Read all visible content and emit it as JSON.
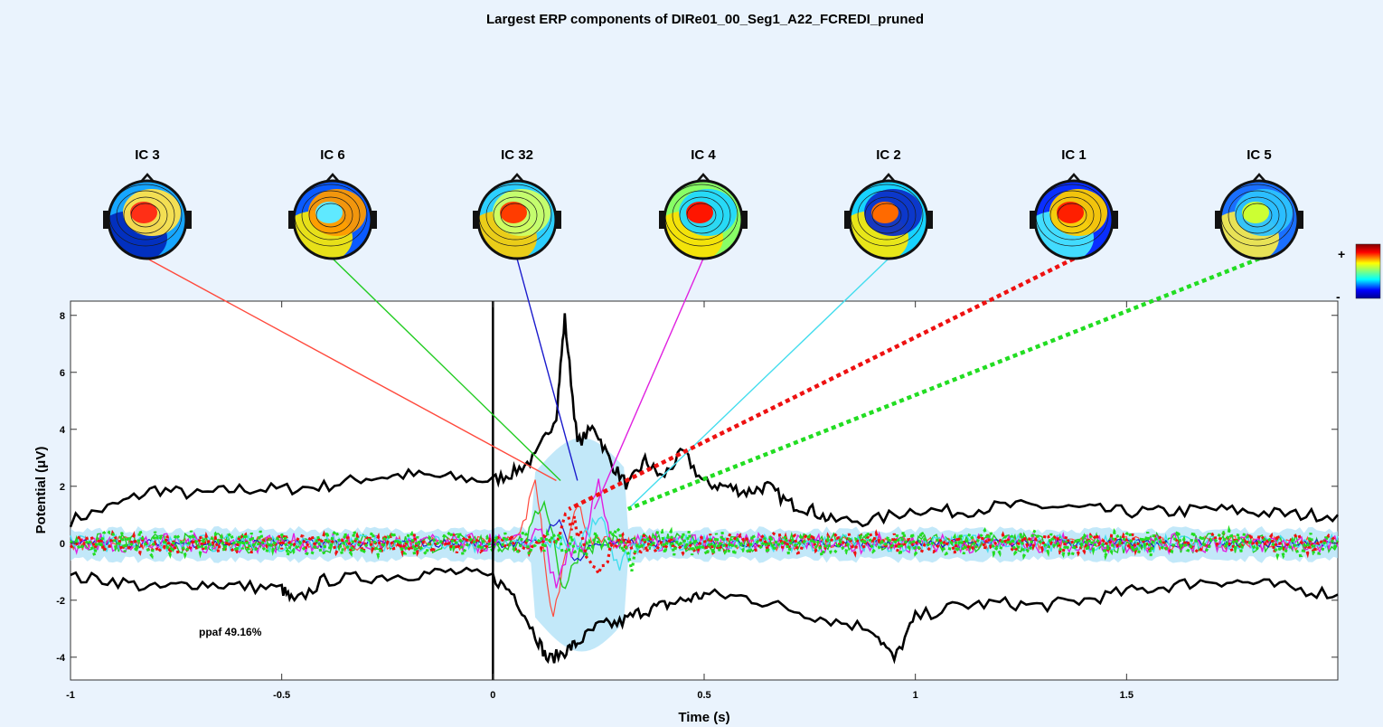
{
  "chart_data": {
    "type": "line",
    "title": "Largest ERP components of DIRe01_00_Seg1_A22_FCREDI_pruned",
    "xlabel": "Time (s)",
    "ylabel": "Potential (μV)",
    "xlim": [
      -1,
      2
    ],
    "ylim": [
      -4.8,
      8.5
    ],
    "x_ticks": [
      -1,
      -0.5,
      0,
      0.5,
      1,
      1.5
    ],
    "x_tick_labels": [
      "-1",
      "-0.5",
      "0",
      "0.5",
      "1",
      "1.5"
    ],
    "y_ticks": [
      -4,
      -2,
      0,
      2,
      4,
      6,
      8
    ],
    "y_tick_labels": [
      "-4",
      "-2",
      "0",
      "2",
      "4",
      "6",
      "8"
    ],
    "grid": false,
    "legend": "none",
    "stimulus_onset": 0,
    "annotation": "ppaf 49.16%",
    "colorbar": {
      "plus_label": "+",
      "minus_label": "-"
    },
    "envelope": {
      "color": "#000000",
      "upper": [
        [
          -1,
          0.8
        ],
        [
          -0.9,
          1.3
        ],
        [
          -0.8,
          1.9
        ],
        [
          -0.7,
          1.7
        ],
        [
          -0.6,
          1.9
        ],
        [
          -0.5,
          1.9
        ],
        [
          -0.4,
          2.0
        ],
        [
          -0.3,
          2.3
        ],
        [
          -0.2,
          2.4
        ],
        [
          -0.1,
          2.3
        ],
        [
          0,
          2.2
        ],
        [
          0.05,
          2.5
        ],
        [
          0.1,
          3.0
        ],
        [
          0.15,
          4.5
        ],
        [
          0.17,
          7.9
        ],
        [
          0.2,
          3.5
        ],
        [
          0.24,
          4.1
        ],
        [
          0.28,
          2.8
        ],
        [
          0.32,
          2.0
        ],
        [
          0.36,
          2.9
        ],
        [
          0.4,
          2.3
        ],
        [
          0.45,
          3.2
        ],
        [
          0.5,
          2.1
        ],
        [
          0.55,
          2.0
        ],
        [
          0.6,
          1.8
        ],
        [
          0.65,
          2.0
        ],
        [
          0.7,
          1.4
        ],
        [
          0.75,
          1.2
        ],
        [
          0.8,
          0.8
        ],
        [
          0.9,
          0.8
        ],
        [
          1.0,
          1.2
        ],
        [
          1.1,
          1.1
        ],
        [
          1.2,
          1.3
        ],
        [
          1.3,
          1.3
        ],
        [
          1.4,
          1.2
        ],
        [
          1.5,
          1.1
        ],
        [
          1.6,
          1.1
        ],
        [
          1.7,
          1.2
        ],
        [
          1.8,
          1.1
        ],
        [
          1.9,
          1.0
        ],
        [
          2.0,
          1.0
        ]
      ],
      "lower": [
        [
          -1,
          -1.2
        ],
        [
          -0.9,
          -1.3
        ],
        [
          -0.8,
          -1.6
        ],
        [
          -0.7,
          -1.4
        ],
        [
          -0.6,
          -1.5
        ],
        [
          -0.5,
          -1.6
        ],
        [
          -0.47,
          -2.1
        ],
        [
          -0.4,
          -1.3
        ],
        [
          -0.3,
          -1.2
        ],
        [
          -0.2,
          -1.1
        ],
        [
          -0.1,
          -1.0
        ],
        [
          0,
          -1.2
        ],
        [
          0.05,
          -1.8
        ],
        [
          0.1,
          -3.2
        ],
        [
          0.13,
          -4.1
        ],
        [
          0.17,
          -3.8
        ],
        [
          0.2,
          -3.5
        ],
        [
          0.25,
          -2.9
        ],
        [
          0.3,
          -2.8
        ],
        [
          0.35,
          -2.4
        ],
        [
          0.4,
          -2.2
        ],
        [
          0.45,
          -2.0
        ],
        [
          0.5,
          -1.8
        ],
        [
          0.6,
          -1.9
        ],
        [
          0.7,
          -2.3
        ],
        [
          0.8,
          -2.7
        ],
        [
          0.9,
          -3.0
        ],
        [
          0.95,
          -4.1
        ],
        [
          1.0,
          -2.6
        ],
        [
          1.1,
          -2.2
        ],
        [
          1.2,
          -2.1
        ],
        [
          1.3,
          -2.2
        ],
        [
          1.4,
          -2.0
        ],
        [
          1.5,
          -1.7
        ],
        [
          1.6,
          -1.5
        ],
        [
          1.7,
          -1.3
        ],
        [
          1.8,
          -1.4
        ],
        [
          1.9,
          -1.6
        ],
        [
          2.0,
          -1.8
        ]
      ]
    },
    "series": [
      {
        "label": "IC 3",
        "color": "#ff4a3d",
        "dash": "solid",
        "width": 1.2,
        "peak_time": 0.15,
        "amp_noise": 0.25,
        "burst": [
          [
            0.1,
            2.2
          ],
          [
            0.14,
            -2.5
          ],
          [
            0.2,
            1.2
          ]
        ]
      },
      {
        "label": "IC 6",
        "color": "#22cc22",
        "dash": "solid",
        "width": 1.4,
        "peak_time": 0.16,
        "amp_noise": 0.35,
        "burst": [
          [
            0.12,
            1.5
          ],
          [
            0.17,
            -1.5
          ]
        ]
      },
      {
        "label": "IC 32",
        "color": "#1a1acc",
        "dash": "solid",
        "width": 1.2,
        "peak_time": 0.2,
        "amp_noise": 0.15,
        "burst": [
          [
            0.15,
            0.8
          ],
          [
            0.2,
            -0.6
          ]
        ]
      },
      {
        "label": "IC 4",
        "color": "#e020e0",
        "dash": "solid",
        "width": 1.4,
        "peak_time": 0.24,
        "amp_noise": 0.35,
        "burst": [
          [
            0.13,
            2.5
          ],
          [
            0.14,
            -3.3
          ],
          [
            0.24,
            3.8
          ],
          [
            0.23,
            -2.5
          ]
        ]
      },
      {
        "label": "IC 2",
        "color": "#44ddee",
        "dash": "solid",
        "width": 1.4,
        "peak_time": 0.32,
        "amp_noise": 0.3,
        "burst": [
          [
            0.25,
            1.0
          ],
          [
            0.3,
            -0.8
          ]
        ]
      },
      {
        "label": "IC 1",
        "color": "#ee1111",
        "dash": "dotted",
        "width": 3.2,
        "peak_time": 0.18,
        "amp_noise": 0.35,
        "burst": [
          [
            0.18,
            0.8
          ],
          [
            0.25,
            -1.0
          ]
        ]
      },
      {
        "label": "IC 5",
        "color": "#22dd22",
        "dash": "dotted",
        "width": 3.2,
        "peak_time": 0.32,
        "amp_noise": 0.45,
        "burst": [
          [
            0.3,
            0.6
          ],
          [
            0.32,
            -1.0
          ]
        ]
      }
    ]
  }
}
